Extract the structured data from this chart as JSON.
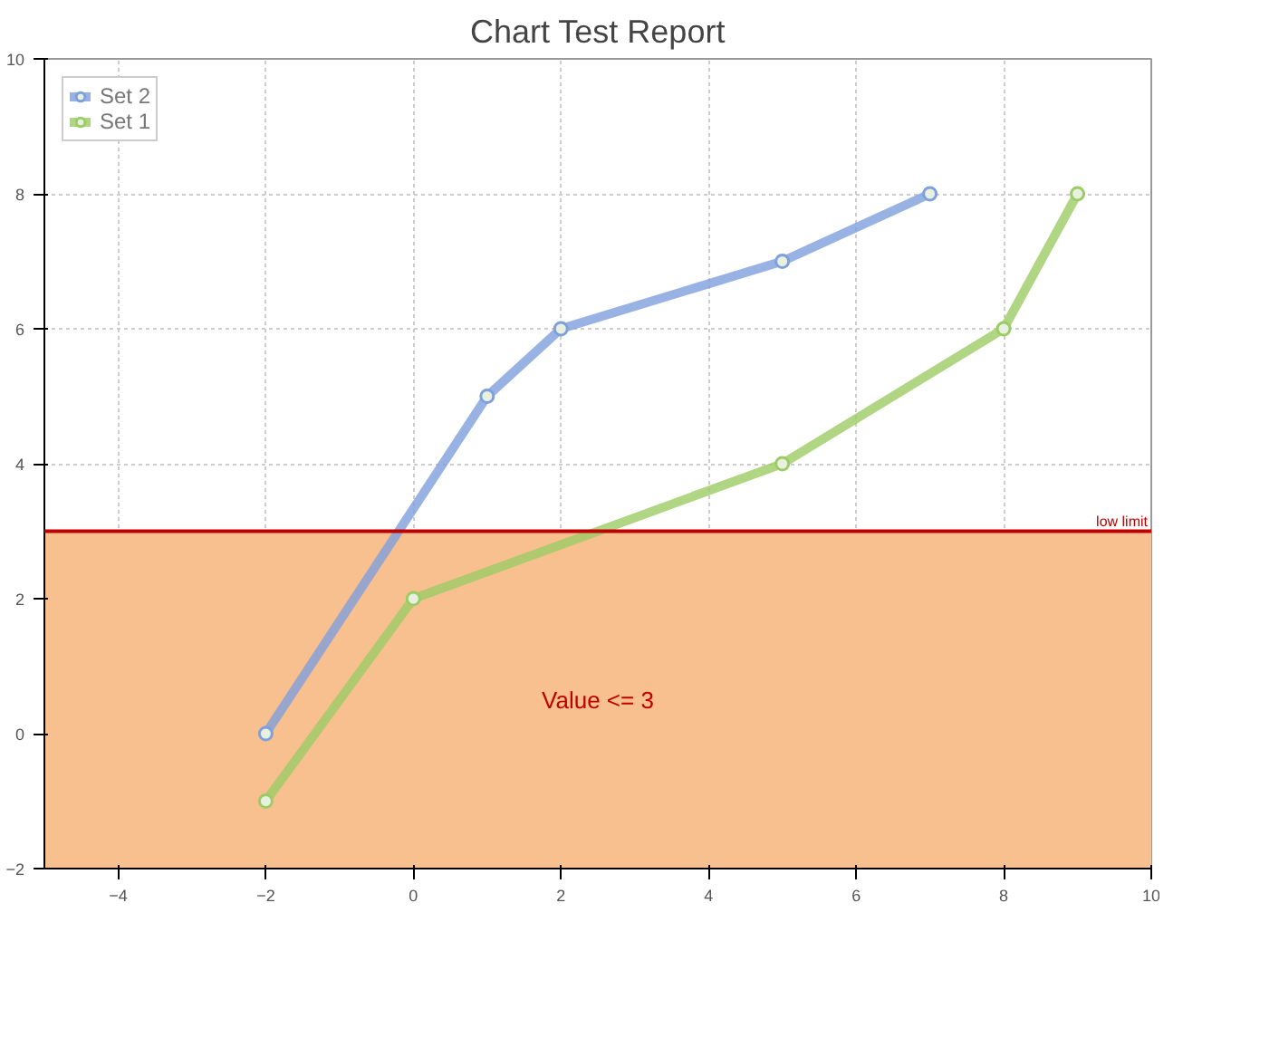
{
  "chart_data": {
    "type": "line",
    "title": "Chart Test Report",
    "series": [
      {
        "name": "Set 2",
        "color": "#7f9fdd",
        "x": [
          -2,
          1,
          2,
          5,
          7
        ],
        "values": [
          0,
          5,
          6,
          7,
          8
        ]
      },
      {
        "name": "Set 1",
        "color": "#9ccc65",
        "x": [
          -2,
          0,
          5,
          8,
          9
        ],
        "values": [
          -1,
          2,
          4,
          6,
          8
        ]
      }
    ],
    "xlim": [
      -5,
      10
    ],
    "xticks": [
      -4,
      -2,
      0,
      2,
      4,
      6,
      8,
      10
    ],
    "ylim": [
      -2,
      10
    ],
    "yticks": [
      -2,
      0,
      2,
      4,
      6,
      8,
      10
    ],
    "ref_lines": [
      {
        "axis": "y",
        "value": 3,
        "label": "low limit",
        "color": "#c00000"
      }
    ],
    "bands": [
      {
        "axis": "y",
        "from": -2,
        "to": 3,
        "label": "Value <= 3",
        "color": "#f8c08f"
      }
    ],
    "grid": true,
    "legend": "top left",
    "marker": "circle",
    "line_style": "solid"
  }
}
